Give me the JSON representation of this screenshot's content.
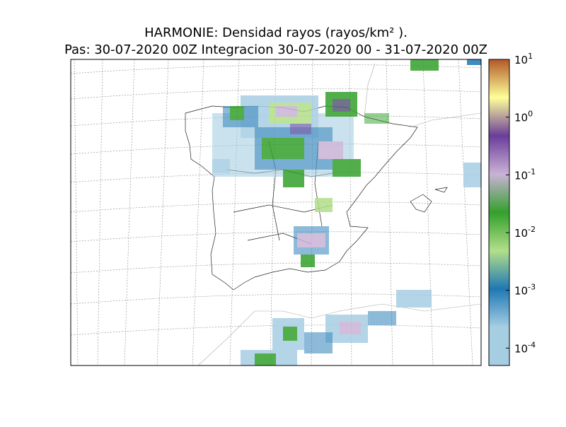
{
  "title": {
    "line1": "HARMONIE: Densidad rayos  (rayos/km² ).",
    "line2": "Pas: 30-07-2020 00Z Integracion 30-07-2020 00 - 31-07-2020 00Z"
  },
  "colorbar": {
    "scale": "log",
    "range": [
      5e-05,
      10
    ],
    "ticks": [
      {
        "value": 10,
        "base": "10",
        "exponent": "1"
      },
      {
        "value": 1,
        "base": "10",
        "exponent": "0"
      },
      {
        "value": 0.1,
        "base": "10",
        "exponent": "-1"
      },
      {
        "value": 0.01,
        "base": "10",
        "exponent": "-2"
      },
      {
        "value": 0.001,
        "base": "10",
        "exponent": "-3"
      },
      {
        "value": 0.0001,
        "base": "10",
        "exponent": "-4"
      }
    ],
    "colors": [
      "#a6cee3",
      "#a6cee3",
      "#1f78b4",
      "#b2df8a",
      "#33a02c",
      "#cab2d6",
      "#6a3d9a",
      "#ffff99",
      "#b15928"
    ]
  }
}
